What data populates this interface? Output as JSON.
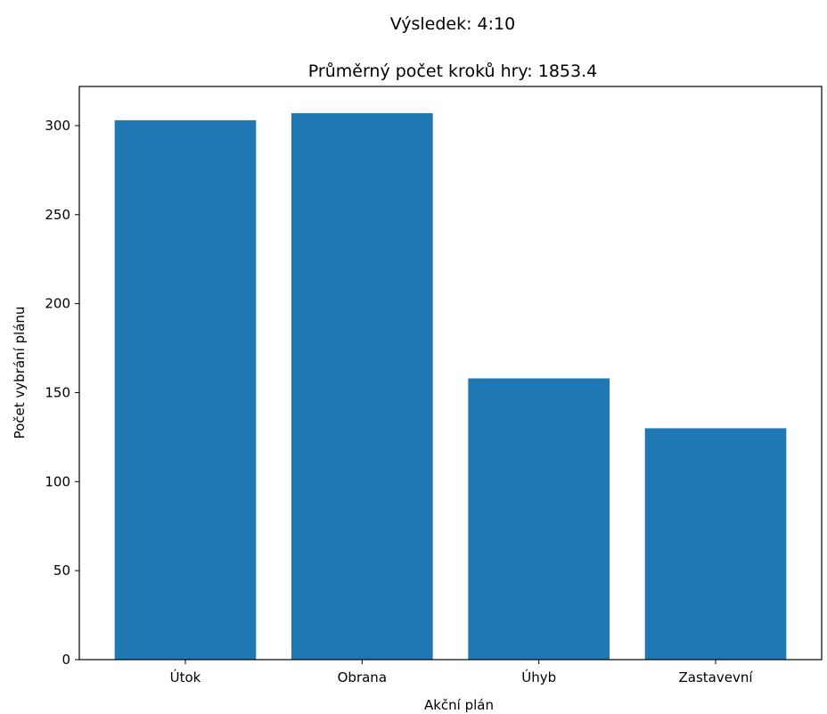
{
  "chart_data": {
    "type": "bar",
    "suptitle": "Výsledek: 4:10",
    "title": "Průměrný počet kroků hry: 1853.4",
    "xlabel": "Akční plán",
    "ylabel": "Počet vybrání plánu",
    "categories": [
      "Útok",
      "Obrana",
      "Úhyb",
      "Zastavevní"
    ],
    "values": [
      303,
      307,
      158,
      130
    ],
    "ylim": [
      0,
      322
    ],
    "yticks": [
      0,
      50,
      100,
      150,
      200,
      250,
      300
    ],
    "bar_color": "#1f77b4",
    "grid": false
  }
}
